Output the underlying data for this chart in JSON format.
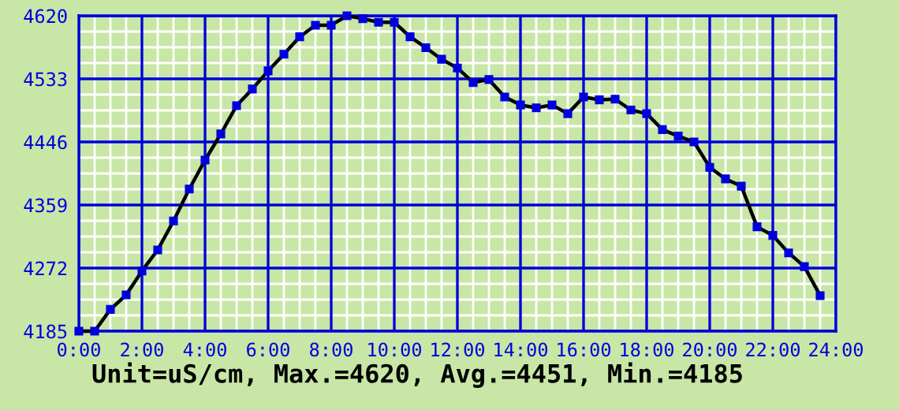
{
  "chart_data": {
    "type": "line",
    "x": [
      0,
      0.5,
      1,
      1.5,
      2,
      2.5,
      3,
      3.5,
      4,
      4.5,
      5,
      5.5,
      6,
      6.5,
      7,
      7.5,
      8,
      8.5,
      9,
      9.5,
      10,
      10.5,
      11,
      11.5,
      12,
      12.5,
      13,
      13.5,
      14,
      14.5,
      15,
      15.5,
      16,
      16.5,
      17,
      17.5,
      18,
      18.5,
      19,
      19.5,
      20,
      20.5,
      21,
      21.5,
      22,
      22.5,
      23,
      23.5
    ],
    "series": [
      {
        "color": "#000000",
        "values": [
          4185,
          4185,
          4215,
          4235,
          4268,
          4297,
          4337,
          4381,
          4421,
          4457,
          4496,
          4519,
          4544,
          4567,
          4591,
          4607,
          4607,
          4620,
          4616,
          4611,
          4611,
          4591,
          4576,
          4560,
          4548,
          4528,
          4532,
          4508,
          4497,
          4493,
          4497,
          4485,
          4508,
          4504,
          4505,
          4490,
          4485,
          4463,
          4454,
          4446,
          4411,
          4395,
          4385,
          4329,
          4317,
          4293,
          4274,
          4234
        ]
      }
    ],
    "xlim": [
      0,
      24
    ],
    "xticks": [
      {
        "value": 0,
        "label": "0:00"
      },
      {
        "value": 2,
        "label": "2:00"
      },
      {
        "value": 4,
        "label": "4:00"
      },
      {
        "value": 6,
        "label": "6:00"
      },
      {
        "value": 8,
        "label": "8:00"
      },
      {
        "value": 10,
        "label": "10:00"
      },
      {
        "value": 12,
        "label": "12:00"
      },
      {
        "value": 14,
        "label": "14:00"
      },
      {
        "value": 16,
        "label": "16:00"
      },
      {
        "value": 18,
        "label": "18:00"
      },
      {
        "value": 20,
        "label": "20:00"
      },
      {
        "value": 22,
        "label": "22:00"
      },
      {
        "value": 24,
        "label": "24:00"
      }
    ],
    "ylim": [
      4185,
      4620
    ],
    "yticks": [
      4185,
      4272,
      4359,
      4446,
      4533,
      4620
    ],
    "grid": true,
    "marker": "square",
    "line_style": "solid",
    "annotations": [
      "Unit=uS/cm, Max.=4620, Avg.=4451, Min.=4185"
    ]
  }
}
